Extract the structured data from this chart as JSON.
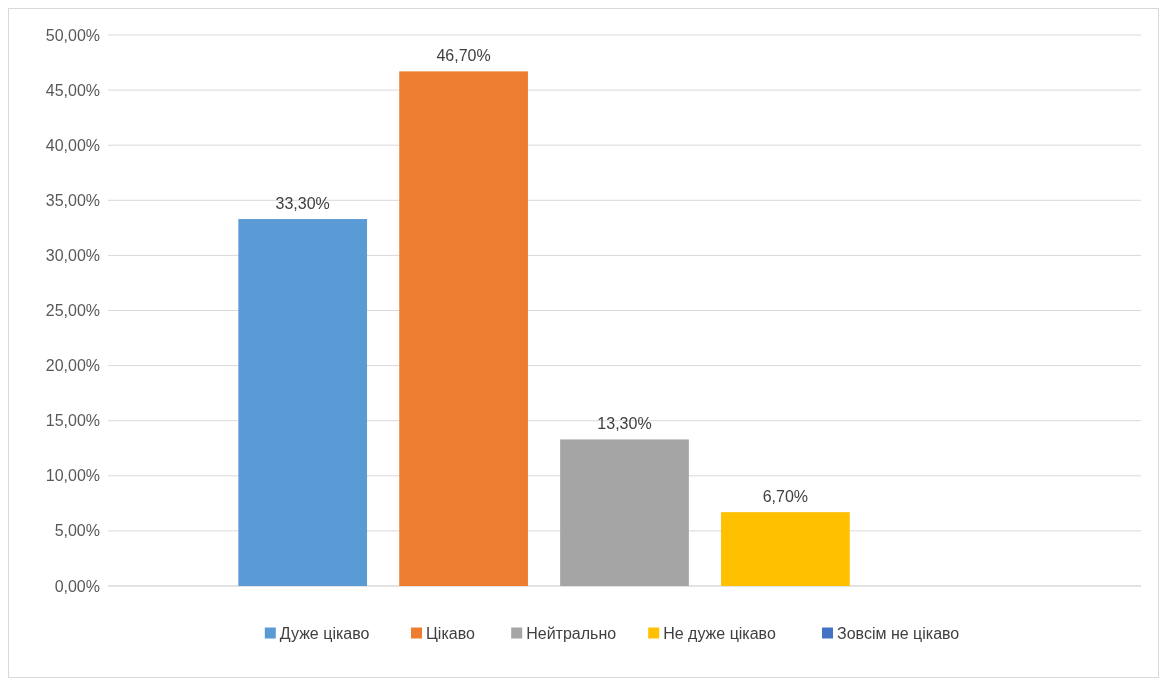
{
  "chart_data": {
    "type": "bar",
    "categories": [
      null
    ],
    "series": [
      {
        "name": "Дуже цікаво",
        "color": "#5b9bd5",
        "values": [
          33.3
        ],
        "value_labels": [
          "33,30%"
        ]
      },
      {
        "name": "Цікаво",
        "color": "#ed7d31",
        "values": [
          46.7
        ],
        "value_labels": [
          "46,70%"
        ]
      },
      {
        "name": "Нейтрально",
        "color": "#a5a5a5",
        "values": [
          13.3
        ],
        "value_labels": [
          "13,30%"
        ]
      },
      {
        "name": "Не дуже цікаво",
        "color": "#ffc000",
        "values": [
          6.7
        ],
        "value_labels": [
          "6,70%"
        ]
      },
      {
        "name": "Зовсім не цікаво",
        "color": "#4472c4",
        "values": [
          null
        ],
        "value_labels": [
          null
        ]
      }
    ],
    "ylim": [
      0,
      50
    ],
    "yticks": [
      {
        "value": 0,
        "label": "0,00%"
      },
      {
        "value": 5,
        "label": "5,00%"
      },
      {
        "value": 10,
        "label": "10,00%"
      },
      {
        "value": 15,
        "label": "15,00%"
      },
      {
        "value": 20,
        "label": "20,00%"
      },
      {
        "value": 25,
        "label": "25,00%"
      },
      {
        "value": 30,
        "label": "30,00%"
      },
      {
        "value": 35,
        "label": "35,00%"
      },
      {
        "value": 40,
        "label": "40,00%"
      },
      {
        "value": 45,
        "label": "45,00%"
      },
      {
        "value": 50,
        "label": "50,00%"
      }
    ],
    "grid": "y",
    "legend": "bottom"
  }
}
